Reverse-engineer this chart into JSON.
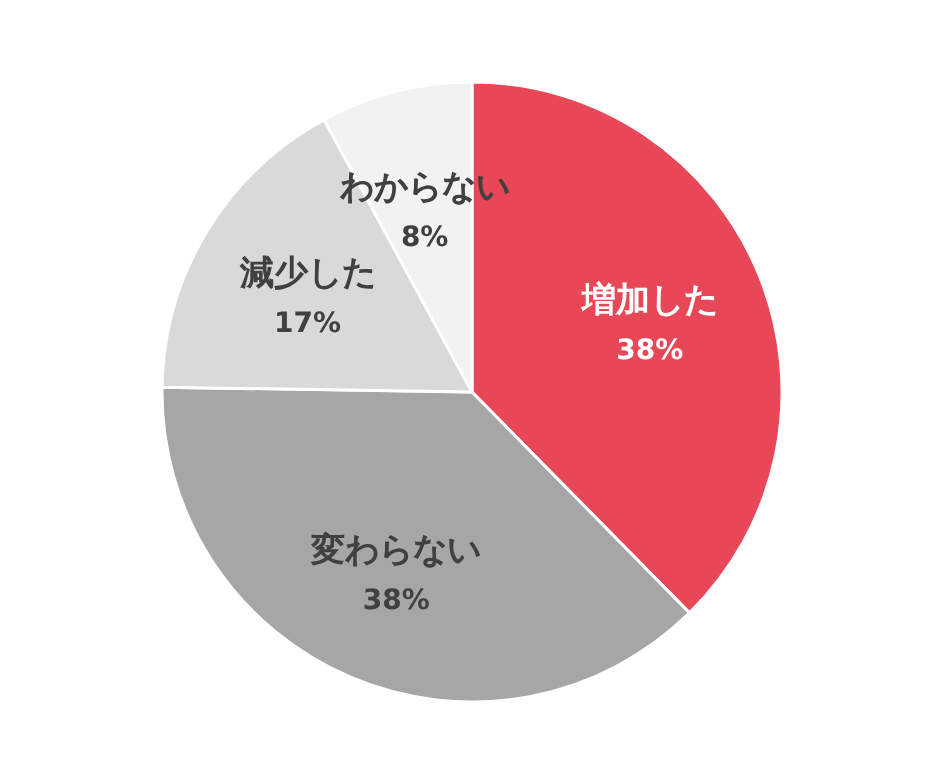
{
  "chart_data": {
    "type": "pie",
    "categories": [
      "増加した",
      "変わらない",
      "減少した",
      "わからない"
    ],
    "values": [
      38,
      38,
      17,
      8
    ],
    "value_labels": [
      "38%",
      "38%",
      "17%",
      "8%"
    ],
    "colors": [
      "#e84758",
      "#a6a6a6",
      "#d9d9d9",
      "#f2f2f2"
    ]
  }
}
